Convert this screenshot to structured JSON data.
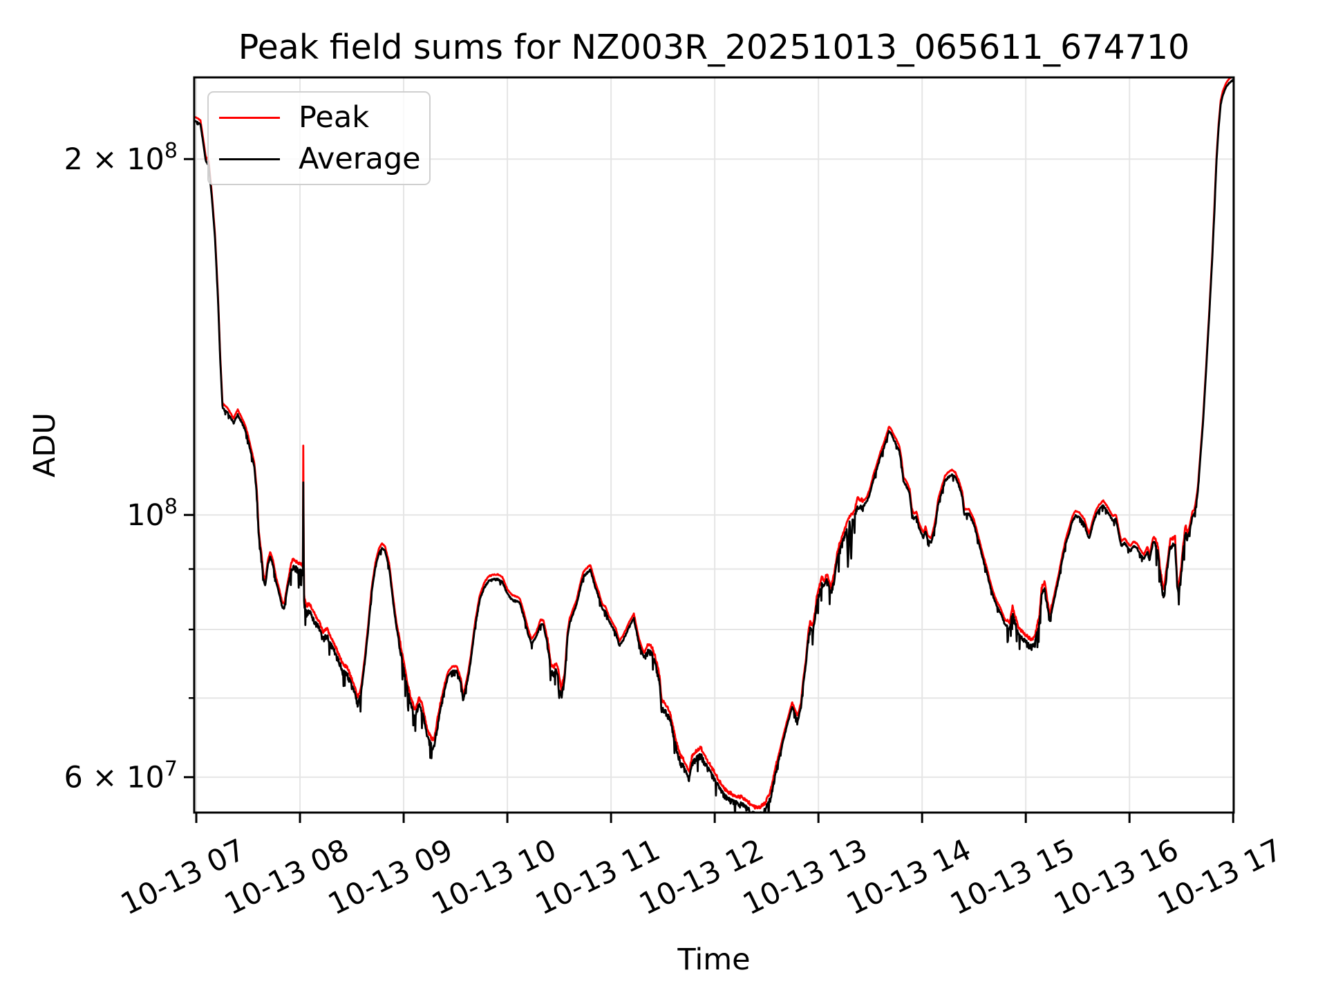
{
  "chart_data": {
    "type": "line",
    "title": "Peak field sums for NZ003R_20251013_065611_674710",
    "xlabel": "Time",
    "ylabel": "ADU",
    "grid": true,
    "y_scale": "log",
    "legend_position": "upper left",
    "xlim_hours": [
      6.98,
      17.005
    ],
    "ylim_adu": [
      56000000,
      234500000
    ],
    "x_ticks": [
      {
        "hour": 7,
        "label": "10-13 07"
      },
      {
        "hour": 8,
        "label": "10-13 08"
      },
      {
        "hour": 9,
        "label": "10-13 09"
      },
      {
        "hour": 10,
        "label": "10-13 10"
      },
      {
        "hour": 11,
        "label": "10-13 11"
      },
      {
        "hour": 12,
        "label": "10-13 12"
      },
      {
        "hour": 13,
        "label": "10-13 13"
      },
      {
        "hour": 14,
        "label": "10-13 14"
      },
      {
        "hour": 15,
        "label": "10-13 15"
      },
      {
        "hour": 16,
        "label": "10-13 16"
      },
      {
        "hour": 17,
        "label": "10-13 17"
      }
    ],
    "y_ticks": [
      {
        "value": 200000000,
        "mantissa": "2 × 10",
        "exponent": "8",
        "labeled": true
      },
      {
        "value": 100000000,
        "mantissa": "10",
        "exponent": "8",
        "labeled": true
      },
      {
        "value": 90000000,
        "labeled": false
      },
      {
        "value": 80000000,
        "labeled": false
      },
      {
        "value": 70000000,
        "labeled": false
      },
      {
        "value": 60000000,
        "mantissa": "6 × 10",
        "exponent": "7",
        "labeled": true
      }
    ],
    "series": [
      {
        "name": "Peak",
        "color": "#ff0000"
      },
      {
        "name": "Average",
        "color": "#000000"
      }
    ],
    "base_points_hour_value1e7": [
      [
        6.98,
        21.6
      ],
      [
        7.01,
        21.55
      ],
      [
        7.04,
        21.45
      ],
      [
        7.07,
        20.6
      ],
      [
        7.09,
        20.0
      ],
      [
        7.12,
        19.8
      ],
      [
        7.15,
        18.6
      ],
      [
        7.18,
        17.2
      ],
      [
        7.21,
        15.2
      ],
      [
        7.23,
        13.6
      ],
      [
        7.253,
        12.35
      ],
      [
        7.3,
        12.25
      ],
      [
        7.36,
        12.0
      ],
      [
        7.4,
        12.2
      ],
      [
        7.44,
        12.0
      ],
      [
        7.47,
        11.85
      ],
      [
        7.5,
        11.6
      ],
      [
        7.53,
        11.3
      ],
      [
        7.56,
        11.0
      ],
      [
        7.585,
        10.4
      ],
      [
        7.6,
        9.7
      ],
      [
        7.613,
        9.45
      ],
      [
        7.63,
        9.2
      ],
      [
        7.647,
        8.85
      ],
      [
        7.667,
        8.75
      ],
      [
        7.69,
        9.1
      ],
      [
        7.713,
        9.25
      ],
      [
        7.74,
        9.1
      ],
      [
        7.77,
        8.8
      ],
      [
        7.8,
        8.6
      ],
      [
        7.827,
        8.4
      ],
      [
        7.847,
        8.35
      ],
      [
        7.88,
        8.7
      ],
      [
        7.913,
        9.0
      ],
      [
        7.933,
        9.1
      ],
      [
        7.973,
        9.05
      ],
      [
        8.013,
        9.0
      ],
      [
        8.028,
        9.0
      ],
      [
        8.032,
        11.35
      ],
      [
        8.038,
        8.5
      ],
      [
        8.06,
        8.3
      ],
      [
        8.09,
        8.35
      ],
      [
        8.13,
        8.2
      ],
      [
        8.18,
        8.08
      ],
      [
        8.22,
        7.9
      ],
      [
        8.26,
        7.95
      ],
      [
        8.29,
        7.85
      ],
      [
        8.33,
        7.72
      ],
      [
        8.37,
        7.58
      ],
      [
        8.41,
        7.42
      ],
      [
        8.46,
        7.36
      ],
      [
        8.5,
        7.2
      ],
      [
        8.53,
        7.1
      ],
      [
        8.558,
        6.95
      ],
      [
        8.59,
        7.1
      ],
      [
        8.627,
        7.55
      ],
      [
        8.66,
        8.05
      ],
      [
        8.69,
        8.6
      ],
      [
        8.727,
        9.05
      ],
      [
        8.76,
        9.3
      ],
      [
        8.79,
        9.4
      ],
      [
        8.82,
        9.35
      ],
      [
        8.86,
        9.05
      ],
      [
        8.893,
        8.55
      ],
      [
        8.927,
        8.1
      ],
      [
        8.96,
        7.8
      ],
      [
        8.993,
        7.5
      ],
      [
        9.03,
        7.2
      ],
      [
        9.067,
        6.95
      ],
      [
        9.11,
        6.78
      ],
      [
        9.147,
        6.95
      ],
      [
        9.18,
        6.85
      ],
      [
        9.227,
        6.52
      ],
      [
        9.267,
        6.42
      ],
      [
        9.293,
        6.4
      ],
      [
        9.333,
        6.72
      ],
      [
        9.38,
        7.05
      ],
      [
        9.427,
        7.32
      ],
      [
        9.467,
        7.4
      ],
      [
        9.513,
        7.4
      ],
      [
        9.553,
        7.22
      ],
      [
        9.573,
        6.98
      ],
      [
        9.62,
        7.3
      ],
      [
        9.647,
        7.55
      ],
      [
        9.687,
        8.05
      ],
      [
        9.733,
        8.5
      ],
      [
        9.78,
        8.72
      ],
      [
        9.82,
        8.82
      ],
      [
        9.867,
        8.85
      ],
      [
        9.91,
        8.85
      ],
      [
        9.953,
        8.8
      ],
      [
        10.0,
        8.6
      ],
      [
        10.047,
        8.5
      ],
      [
        10.09,
        8.48
      ],
      [
        10.12,
        8.45
      ],
      [
        10.153,
        8.26
      ],
      [
        10.2,
        7.96
      ],
      [
        10.233,
        7.8
      ],
      [
        10.28,
        7.92
      ],
      [
        10.32,
        8.1
      ],
      [
        10.347,
        8.1
      ],
      [
        10.387,
        7.8
      ],
      [
        10.42,
        7.42
      ],
      [
        10.447,
        7.36
      ],
      [
        10.467,
        7.43
      ],
      [
        10.487,
        7.38
      ],
      [
        10.513,
        7.12
      ],
      [
        10.52,
        7.06
      ],
      [
        10.553,
        7.3
      ],
      [
        10.58,
        7.9
      ],
      [
        10.6,
        8.12
      ],
      [
        10.633,
        8.27
      ],
      [
        10.667,
        8.42
      ],
      [
        10.7,
        8.67
      ],
      [
        10.733,
        8.9
      ],
      [
        10.787,
        9.0
      ],
      [
        10.8,
        9.02
      ],
      [
        10.847,
        8.72
      ],
      [
        10.88,
        8.56
      ],
      [
        10.913,
        8.36
      ],
      [
        10.947,
        8.31
      ],
      [
        10.98,
        8.16
      ],
      [
        11.047,
        7.96
      ],
      [
        11.08,
        7.77
      ],
      [
        11.12,
        7.87
      ],
      [
        11.17,
        8.05
      ],
      [
        11.22,
        8.2
      ],
      [
        11.267,
        7.82
      ],
      [
        11.3,
        7.66
      ],
      [
        11.32,
        7.6
      ],
      [
        11.353,
        7.71
      ],
      [
        11.387,
        7.69
      ],
      [
        11.42,
        7.56
      ],
      [
        11.447,
        7.4
      ],
      [
        11.467,
        7.26
      ],
      [
        11.487,
        6.92
      ],
      [
        11.513,
        6.88
      ],
      [
        11.567,
        6.76
      ],
      [
        11.6,
        6.56
      ],
      [
        11.633,
        6.36
      ],
      [
        11.667,
        6.21
      ],
      [
        11.7,
        6.16
      ],
      [
        11.733,
        6.06
      ],
      [
        11.753,
        6.0
      ],
      [
        11.78,
        6.2
      ],
      [
        11.82,
        6.26
      ],
      [
        11.867,
        6.3
      ],
      [
        11.913,
        6.18
      ],
      [
        11.953,
        6.1
      ],
      [
        12.0,
        6.0
      ],
      [
        12.047,
        5.9
      ],
      [
        12.087,
        5.83
      ],
      [
        12.133,
        5.78
      ],
      [
        12.18,
        5.75
      ],
      [
        12.267,
        5.72
      ],
      [
        12.333,
        5.66
      ],
      [
        12.373,
        5.62
      ],
      [
        12.42,
        5.6
      ],
      [
        12.487,
        5.66
      ],
      [
        12.54,
        5.8
      ],
      [
        12.593,
        6.1
      ],
      [
        12.687,
        6.6
      ],
      [
        12.747,
        6.9
      ],
      [
        12.8,
        6.72
      ],
      [
        12.833,
        6.9
      ],
      [
        12.853,
        7.2
      ],
      [
        12.88,
        7.5
      ],
      [
        12.9,
        7.85
      ],
      [
        12.92,
        8.05
      ],
      [
        12.947,
        8.0
      ],
      [
        12.967,
        8.2
      ],
      [
        12.987,
        8.5
      ],
      [
        13.013,
        8.65
      ],
      [
        13.033,
        8.8
      ],
      [
        13.053,
        8.72
      ],
      [
        13.08,
        8.85
      ],
      [
        13.12,
        8.62
      ],
      [
        13.153,
        8.85
      ],
      [
        13.18,
        9.2
      ],
      [
        13.2,
        9.35
      ],
      [
        13.253,
        9.65
      ],
      [
        13.287,
        9.85
      ],
      [
        13.3,
        9.9
      ],
      [
        13.347,
        9.97
      ],
      [
        13.367,
        10.17
      ],
      [
        13.38,
        10.25
      ],
      [
        13.427,
        10.2
      ],
      [
        13.467,
        10.3
      ],
      [
        13.5,
        10.48
      ],
      [
        13.533,
        10.77
      ],
      [
        13.567,
        11.0
      ],
      [
        13.6,
        11.25
      ],
      [
        13.633,
        11.45
      ],
      [
        13.68,
        11.8
      ],
      [
        13.7,
        11.75
      ],
      [
        13.753,
        11.5
      ],
      [
        13.78,
        11.37
      ],
      [
        13.8,
        11.1
      ],
      [
        13.82,
        10.7
      ],
      [
        13.847,
        10.62
      ],
      [
        13.88,
        10.45
      ],
      [
        13.9,
        10.07
      ],
      [
        13.92,
        9.96
      ],
      [
        13.947,
        10.0
      ],
      [
        13.967,
        9.8
      ],
      [
        13.987,
        9.7
      ],
      [
        14.013,
        9.6
      ],
      [
        14.033,
        9.72
      ],
      [
        14.053,
        9.55
      ],
      [
        14.087,
        9.5
      ],
      [
        14.113,
        9.7
      ],
      [
        14.133,
        9.9
      ],
      [
        14.153,
        10.23
      ],
      [
        14.187,
        10.48
      ],
      [
        14.22,
        10.72
      ],
      [
        14.253,
        10.8
      ],
      [
        14.287,
        10.85
      ],
      [
        14.32,
        10.8
      ],
      [
        14.353,
        10.63
      ],
      [
        14.387,
        10.4
      ],
      [
        14.407,
        10.05
      ],
      [
        14.453,
        10.05
      ],
      [
        14.5,
        9.85
      ],
      [
        14.52,
        9.7
      ],
      [
        14.553,
        9.45
      ],
      [
        14.587,
        9.2
      ],
      [
        14.62,
        9.0
      ],
      [
        14.653,
        8.75
      ],
      [
        14.687,
        8.55
      ],
      [
        14.72,
        8.4
      ],
      [
        14.753,
        8.3
      ],
      [
        14.8,
        8.1
      ],
      [
        14.847,
        8.05
      ],
      [
        14.87,
        8.3
      ],
      [
        14.887,
        8.2
      ],
      [
        14.933,
        7.95
      ],
      [
        14.98,
        7.88
      ],
      [
        15.02,
        7.82
      ],
      [
        15.053,
        7.78
      ],
      [
        15.087,
        7.82
      ],
      [
        15.13,
        8.15
      ],
      [
        15.153,
        8.6
      ],
      [
        15.18,
        8.72
      ],
      [
        15.213,
        8.35
      ],
      [
        15.233,
        8.18
      ],
      [
        15.28,
        8.55
      ],
      [
        15.3,
        8.72
      ],
      [
        15.32,
        8.88
      ],
      [
        15.353,
        9.2
      ],
      [
        15.387,
        9.5
      ],
      [
        15.42,
        9.7
      ],
      [
        15.447,
        9.9
      ],
      [
        15.48,
        10.02
      ],
      [
        15.52,
        9.98
      ],
      [
        15.567,
        9.85
      ],
      [
        15.587,
        9.7
      ],
      [
        15.613,
        9.58
      ],
      [
        15.647,
        9.85
      ],
      [
        15.68,
        10.05
      ],
      [
        15.713,
        10.15
      ],
      [
        15.747,
        10.22
      ],
      [
        15.78,
        10.12
      ],
      [
        15.84,
        9.92
      ],
      [
        15.87,
        9.95
      ],
      [
        15.893,
        9.7
      ],
      [
        15.92,
        9.44
      ],
      [
        15.953,
        9.5
      ],
      [
        15.987,
        9.4
      ],
      [
        16.007,
        9.35
      ],
      [
        16.04,
        9.44
      ],
      [
        16.073,
        9.4
      ],
      [
        16.107,
        9.28
      ],
      [
        16.14,
        9.2
      ],
      [
        16.173,
        9.35
      ],
      [
        16.193,
        9.18
      ],
      [
        16.227,
        9.5
      ],
      [
        16.24,
        9.52
      ],
      [
        16.273,
        9.35
      ],
      [
        16.293,
        8.98
      ],
      [
        16.32,
        8.66
      ],
      [
        16.333,
        8.55
      ],
      [
        16.353,
        8.9
      ],
      [
        16.373,
        9.15
      ],
      [
        16.393,
        9.45
      ],
      [
        16.44,
        9.5
      ],
      [
        16.46,
        8.75
      ],
      [
        16.473,
        8.62
      ],
      [
        16.493,
        8.85
      ],
      [
        16.52,
        9.38
      ],
      [
        16.54,
        9.72
      ],
      [
        16.56,
        9.6
      ],
      [
        16.58,
        9.72
      ],
      [
        16.607,
        10.0
      ],
      [
        16.627,
        10.05
      ],
      [
        16.64,
        10.2
      ],
      [
        16.66,
        10.5
      ],
      [
        16.687,
        11.3
      ],
      [
        16.71,
        12.0
      ],
      [
        16.74,
        13.3
      ],
      [
        16.77,
        14.8
      ],
      [
        16.8,
        16.6
      ],
      [
        16.82,
        18.2
      ],
      [
        16.84,
        20.0
      ],
      [
        16.86,
        21.3
      ],
      [
        16.88,
        22.3
      ],
      [
        16.9,
        22.7
      ],
      [
        16.93,
        23.05
      ],
      [
        16.96,
        23.25
      ],
      [
        17.0,
        23.4
      ],
      [
        17.005,
        23.42
      ]
    ],
    "average_extra_dips_hour_value1e7": [
      [
        8.033,
        10.6
      ],
      [
        10.5,
        7.0
      ],
      [
        11.49,
        6.8
      ],
      [
        12.35,
        5.5
      ],
      [
        12.42,
        5.48
      ],
      [
        12.46,
        5.52
      ],
      [
        13.285,
        9.0
      ],
      [
        13.315,
        9.12
      ],
      [
        14.41,
        10.0
      ]
    ],
    "noisy_hour_ranges": [
      [
        7.9,
        8.6
      ],
      [
        8.95,
        9.4
      ],
      [
        10.38,
        10.55
      ],
      [
        11.35,
        12.6
      ],
      [
        12.9,
        13.42
      ],
      [
        14.82,
        15.25
      ],
      [
        16.25,
        16.56
      ]
    ],
    "smooth_hour_ranges": [
      [
        6.98,
        7.26
      ],
      [
        16.66,
        17.01
      ]
    ]
  },
  "legend": {
    "items": [
      {
        "label": "Peak",
        "color": "#ff0000"
      },
      {
        "label": "Average",
        "color": "#000000"
      }
    ]
  }
}
